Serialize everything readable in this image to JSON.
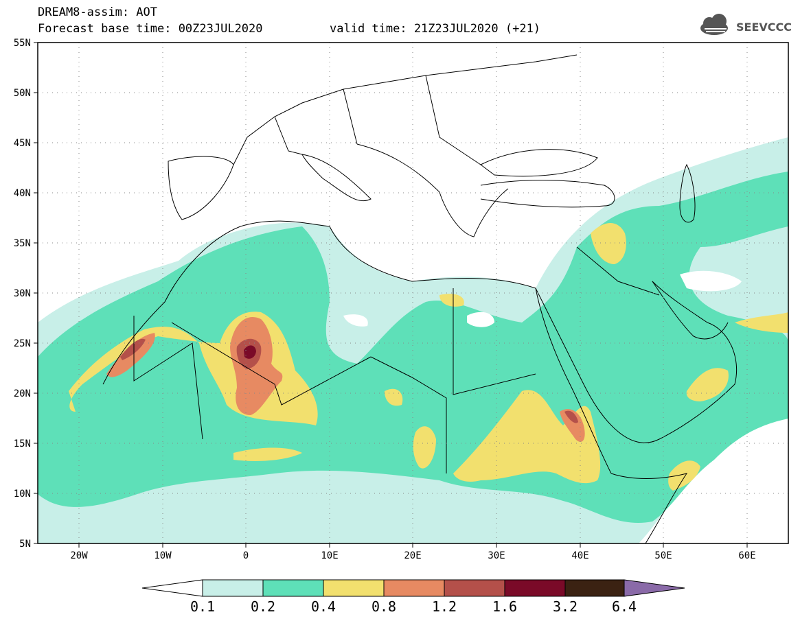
{
  "header": {
    "title": "DREAM8-assim: AOT",
    "base_time": "Forecast base time: 00Z23JUL2020",
    "valid_time": "valid time: 21Z23JUL2020 (+21)"
  },
  "logo": {
    "text": "SEEVCCC",
    "icon": "cloud-logo-icon"
  },
  "map": {
    "lat_labels": [
      "55N",
      "50N",
      "45N",
      "40N",
      "35N",
      "30N",
      "25N",
      "20N",
      "15N",
      "10N",
      "5N"
    ],
    "lon_labels": [
      "20W",
      "10W",
      "0",
      "10E",
      "20E",
      "30E",
      "40E",
      "50E",
      "60E"
    ],
    "lat_range": [
      5,
      55
    ],
    "lon_range": [
      -25,
      65
    ],
    "grid": "dotted"
  },
  "colorbar": {
    "labels": [
      "0.1",
      "0.2",
      "0.4",
      "0.8",
      "1.2",
      "1.6",
      "3.2",
      "6.4"
    ],
    "colors": [
      "#ffffff",
      "#c8efe8",
      "#5ee0b8",
      "#f2e06e",
      "#e78a62",
      "#b4504a",
      "#7a0a28",
      "#3b2212",
      "#8a6aa8"
    ]
  },
  "palette": {
    "lvl1": "#c8efe8",
    "lvl2": "#5ee0b8",
    "lvl3": "#f2e06e",
    "lvl4": "#e78a62",
    "lvl5": "#b4504a",
    "lvl6": "#7a0a28"
  }
}
